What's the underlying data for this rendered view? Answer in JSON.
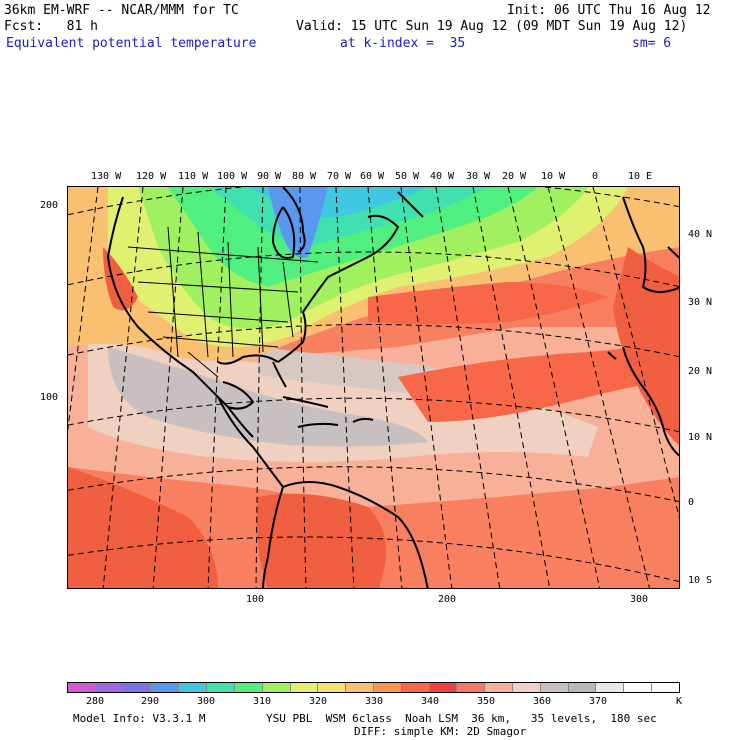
{
  "header": {
    "title": "36km EM-WRF -- NCAR/MMM for TC",
    "init": "Init: 06 UTC Thu 16 Aug 12",
    "fcst": "Fcst:   81 h",
    "valid": "Valid: 15 UTC Sun 19 Aug 12 (09 MDT Sun 19 Aug 12)",
    "field": "Equivalent potential temperature",
    "kindex": "at k-index =  35",
    "smoothing": "sm= 6"
  },
  "axes": {
    "top_lon": [
      "130 W",
      "120 W",
      "110 W",
      "100 W",
      "90 W",
      "80 W",
      "70 W",
      "60 W",
      "50 W",
      "40 W",
      "30 W",
      "20 W",
      "10 W",
      "0",
      "10 E"
    ],
    "right_lat": [
      "40 N",
      "30 N",
      "20 N",
      "10 N",
      "0",
      "10 S"
    ],
    "left_y": [
      "200",
      "100"
    ],
    "bottom_x": [
      "100",
      "200",
      "300"
    ]
  },
  "colorbar": {
    "labels": [
      "280",
      "290",
      "300",
      "310",
      "320",
      "330",
      "340",
      "350",
      "360",
      "370"
    ],
    "unit": "K",
    "colors": [
      "#d05ad0",
      "#a068e0",
      "#7a72e8",
      "#5a98f0",
      "#40c8e0",
      "#40e0b0",
      "#50f080",
      "#a0f060",
      "#e0f070",
      "#f8e070",
      "#f8c070",
      "#f89850",
      "#f86848",
      "#f04040",
      "#f87868",
      "#f8b098",
      "#f0d0c0",
      "#c8c0c0",
      "#b8b8b8",
      "#e8e8e8",
      "#ffffff",
      "#ffffff"
    ]
  },
  "footer": {
    "model": "Model Info: V3.3.1 M",
    "physics": "YSU PBL  WSM 6class  Noah LSM  36 km,   35 levels,  180 sec",
    "diff": "DIFF: simple KM: 2D Smagor"
  }
}
